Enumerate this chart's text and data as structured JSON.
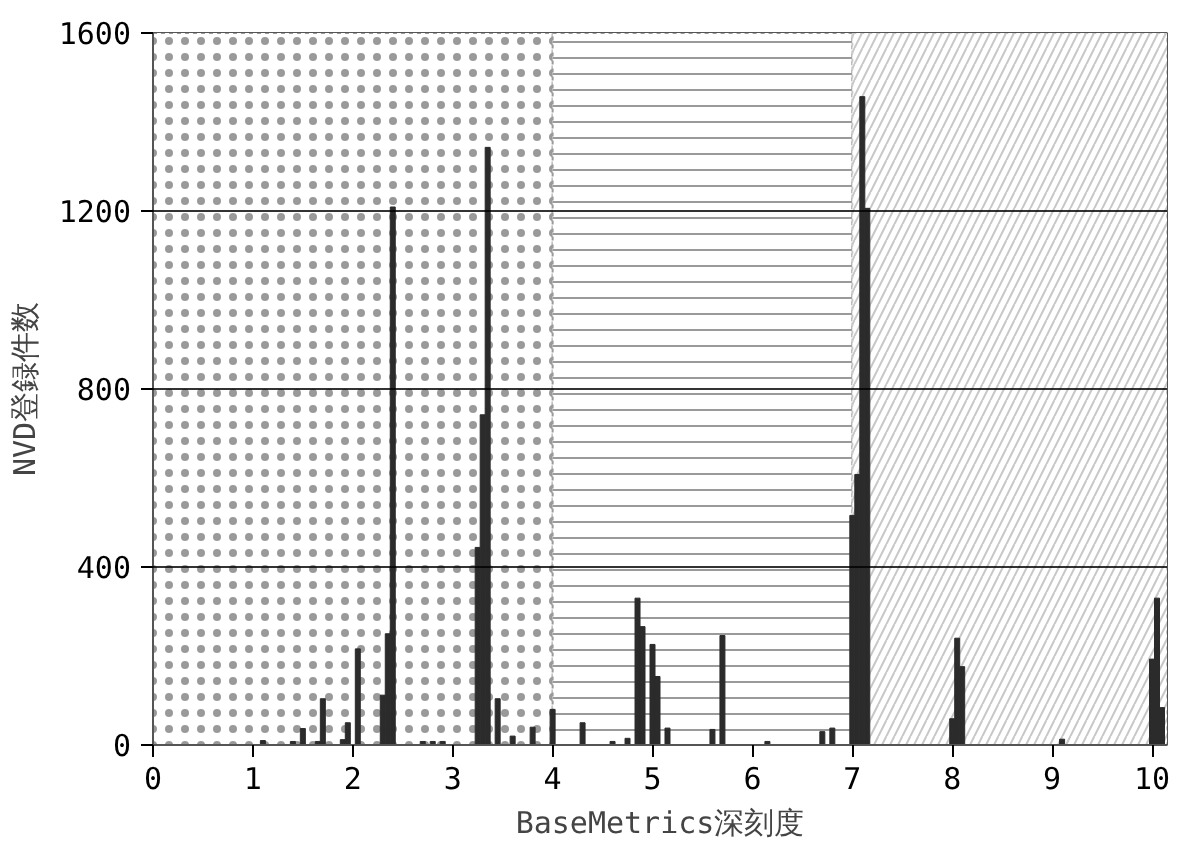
{
  "chart_data": {
    "type": "bar",
    "xlabel": "BaseMetrics深刻度",
    "ylabel": "NVD登録件数",
    "x": [
      1.1,
      1.4,
      1.5,
      1.65,
      1.7,
      1.9,
      1.95,
      2.05,
      2.3,
      2.35,
      2.4,
      2.7,
      2.8,
      2.9,
      3.25,
      3.3,
      3.35,
      3.45,
      3.6,
      3.8,
      4.0,
      4.3,
      4.6,
      4.75,
      4.85,
      4.9,
      5.0,
      5.05,
      5.15,
      5.6,
      5.7,
      6.15,
      6.7,
      6.8,
      7.0,
      7.05,
      7.1,
      7.15,
      8.0,
      8.05,
      8.1,
      9.1,
      10.0,
      10.05,
      10.1
    ],
    "values": [
      10,
      8,
      37,
      8,
      104,
      12,
      50,
      216,
      112,
      250,
      1209,
      8,
      8,
      8,
      444,
      742,
      1343,
      104,
      20,
      40,
      80,
      50,
      8,
      15,
      330,
      266,
      226,
      154,
      38,
      35,
      246,
      8,
      30,
      38,
      516,
      608,
      1457,
      1206,
      59,
      240,
      176,
      13,
      193,
      330,
      84
    ],
    "color": "#2b2b2b",
    "xlim": [
      0,
      10.15
    ],
    "xticks": [
      0,
      1,
      2,
      3,
      4,
      5,
      6,
      7,
      8,
      9,
      10
    ],
    "ylim": [
      0,
      1600
    ],
    "yticks": [
      0,
      400,
      800,
      1200,
      1600
    ],
    "grid": "y",
    "bands": [
      {
        "axis": "x",
        "from": 0,
        "to": 4,
        "color": "#9a9a9a"
      },
      {
        "axis": "x",
        "from": 4,
        "to": 7,
        "color": "#9a9a9a"
      },
      {
        "axis": "x",
        "from": 7,
        "to": 10.15,
        "color": "#c8c8c8"
      }
    ]
  }
}
